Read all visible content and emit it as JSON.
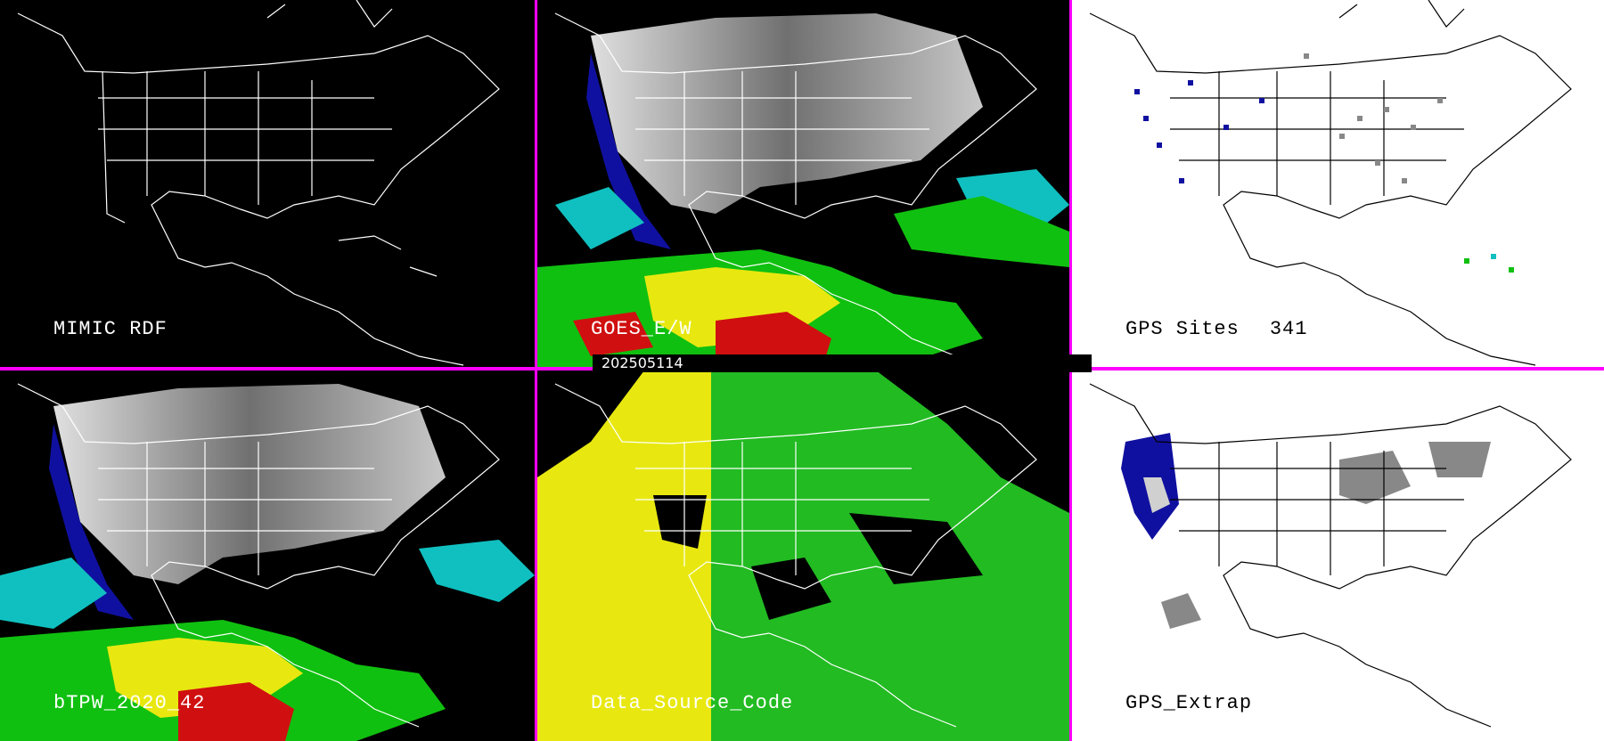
{
  "timestamp": "202505114",
  "panels": {
    "mimic": {
      "label": "MIMIC RDF"
    },
    "goes": {
      "label": "GOES_E/W"
    },
    "gps_sites": {
      "label": "GPS Sites",
      "count": "341"
    },
    "btpw": {
      "label": "bTPW_2020_42"
    },
    "source": {
      "label": "Data_Source_Code"
    },
    "gps_extrap": {
      "label": "GPS_Extrap"
    }
  },
  "colors": {
    "separator": "#ff00ff",
    "precip_dry": "#d0d0d0",
    "precip_low": "#1010a0",
    "precip_mid": "#10c0c0",
    "precip_high": "#10c010",
    "precip_higher": "#e8e810",
    "precip_max": "#d01010",
    "source_west": "#e8e810",
    "source_east": "#22bb22"
  }
}
